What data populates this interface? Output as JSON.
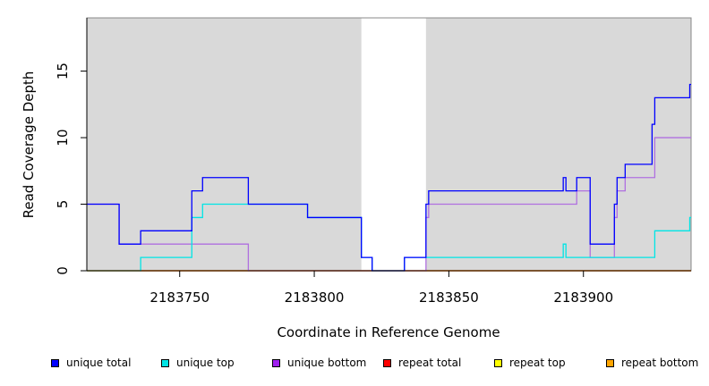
{
  "chart_data": {
    "type": "line",
    "title": "",
    "xlabel": "Coordinate in Reference Genome",
    "ylabel": "Read Coverage Depth",
    "xlim": [
      2183715.5,
      2183940
    ],
    "ylim": [
      0,
      19
    ],
    "x_ticks": [
      2183750,
      2183800,
      2183850,
      2183900
    ],
    "y_ticks": [
      0,
      5,
      10,
      15
    ],
    "grid": false,
    "legend_position": "bottom",
    "shaded_regions": [
      {
        "x_start": 2183715.5,
        "x_end": 2183817.5,
        "color": "#d9d9d9"
      },
      {
        "x_start": 2183841.5,
        "x_end": 2183940,
        "color": "#d9d9d9"
      }
    ],
    "series": [
      {
        "name": "unique total",
        "color": "#0000ff",
        "legend_color": "#0000ff",
        "points": [
          [
            2183715.5,
            5
          ],
          [
            2183727.5,
            5
          ],
          [
            2183727.5,
            2
          ],
          [
            2183735.5,
            2
          ],
          [
            2183735.5,
            3
          ],
          [
            2183754.5,
            3
          ],
          [
            2183754.5,
            6
          ],
          [
            2183758.5,
            6
          ],
          [
            2183758.5,
            7
          ],
          [
            2183775.5,
            7
          ],
          [
            2183775.5,
            5
          ],
          [
            2183797.5,
            5
          ],
          [
            2183797.5,
            4
          ],
          [
            2183817.5,
            4
          ],
          [
            2183817.5,
            1
          ],
          [
            2183821.5,
            1
          ],
          [
            2183821.5,
            0
          ],
          [
            2183833.5,
            0
          ],
          [
            2183833.5,
            1
          ],
          [
            2183841.5,
            1
          ],
          [
            2183841.5,
            5
          ],
          [
            2183842.5,
            5
          ],
          [
            2183842.5,
            6
          ],
          [
            2183892.5,
            6
          ],
          [
            2183892.5,
            7
          ],
          [
            2183893.5,
            7
          ],
          [
            2183893.5,
            6
          ],
          [
            2183897.5,
            6
          ],
          [
            2183897.5,
            7
          ],
          [
            2183902.5,
            7
          ],
          [
            2183902.5,
            2
          ],
          [
            2183911.5,
            2
          ],
          [
            2183911.5,
            5
          ],
          [
            2183912.5,
            5
          ],
          [
            2183912.5,
            7
          ],
          [
            2183915.5,
            7
          ],
          [
            2183915.5,
            8
          ],
          [
            2183925.5,
            8
          ],
          [
            2183925.5,
            11
          ],
          [
            2183926.5,
            11
          ],
          [
            2183926.5,
            13
          ],
          [
            2183939.5,
            13
          ],
          [
            2183939.5,
            14
          ],
          [
            2183940,
            14
          ]
        ]
      },
      {
        "name": "unique top",
        "color": "#00e5e5",
        "legend_color": "#00e5e5",
        "points": [
          [
            2183715.5,
            0
          ],
          [
            2183735.5,
            0
          ],
          [
            2183735.5,
            1
          ],
          [
            2183754.5,
            1
          ],
          [
            2183754.5,
            4
          ],
          [
            2183758.5,
            4
          ],
          [
            2183758.5,
            5
          ],
          [
            2183797.5,
            5
          ],
          [
            2183797.5,
            4
          ],
          [
            2183817.5,
            4
          ],
          [
            2183817.5,
            1
          ],
          [
            2183821.5,
            1
          ],
          [
            2183821.5,
            0
          ],
          [
            2183833.5,
            0
          ],
          [
            2183833.5,
            1
          ],
          [
            2183892.5,
            1
          ],
          [
            2183892.5,
            2
          ],
          [
            2183893.5,
            2
          ],
          [
            2183893.5,
            1
          ],
          [
            2183926.5,
            1
          ],
          [
            2183926.5,
            3
          ],
          [
            2183939.5,
            3
          ],
          [
            2183939.5,
            4
          ],
          [
            2183940,
            4
          ]
        ]
      },
      {
        "name": "unique bottom",
        "color": "#b070e0",
        "legend_color": "#a020f0",
        "points": [
          [
            2183715.5,
            5
          ],
          [
            2183727.5,
            5
          ],
          [
            2183727.5,
            2
          ],
          [
            2183775.5,
            2
          ],
          [
            2183775.5,
            0
          ],
          [
            2183841.5,
            0
          ],
          [
            2183841.5,
            4
          ],
          [
            2183842.5,
            4
          ],
          [
            2183842.5,
            5
          ],
          [
            2183897.5,
            5
          ],
          [
            2183897.5,
            6
          ],
          [
            2183902.5,
            6
          ],
          [
            2183902.5,
            1
          ],
          [
            2183911.5,
            1
          ],
          [
            2183911.5,
            4
          ],
          [
            2183912.5,
            4
          ],
          [
            2183912.5,
            6
          ],
          [
            2183915.5,
            6
          ],
          [
            2183915.5,
            7
          ],
          [
            2183926.5,
            7
          ],
          [
            2183926.5,
            10
          ],
          [
            2183940,
            10
          ]
        ]
      },
      {
        "name": "repeat total",
        "color": "#ff0000",
        "legend_color": "#ff0000",
        "points": [
          [
            2183715.5,
            0
          ],
          [
            2183940,
            0
          ]
        ]
      },
      {
        "name": "repeat top",
        "color": "#ffff00",
        "legend_color": "#ffff00",
        "points": [
          [
            2183715.5,
            0
          ],
          [
            2183940,
            0
          ]
        ]
      },
      {
        "name": "repeat bottom",
        "color": "#ffa500",
        "legend_color": "#ffa500",
        "points": [
          [
            2183715.5,
            0
          ],
          [
            2183940,
            0
          ]
        ]
      }
    ]
  }
}
